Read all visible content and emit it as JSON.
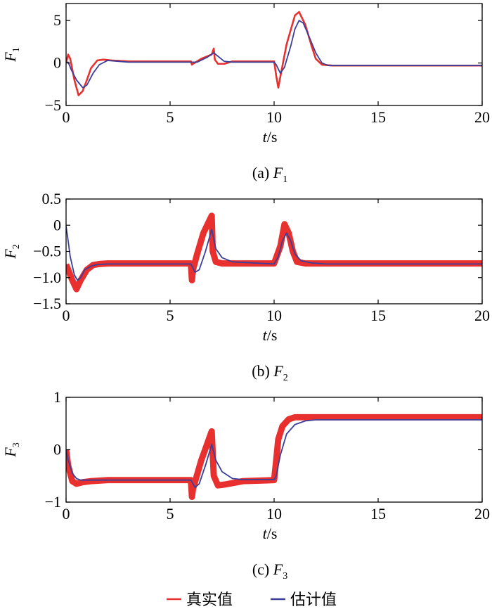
{
  "colors": {
    "real": "#e8312f",
    "estimate": "#3b3f9a",
    "axis": "#000000"
  },
  "legend": {
    "real_label": "真实值",
    "estimate_label": "估计值"
  },
  "chart_data": [
    {
      "type": "line",
      "caption": "(a) F",
      "caption_sub": "1",
      "xlabel": "t/s",
      "ylabel": "F",
      "ylabel_sub": "1",
      "xlim": [
        0,
        20
      ],
      "ylim": [
        -5,
        7
      ],
      "xticks": [
        0,
        5,
        10,
        15,
        20
      ],
      "yticks": [
        -5,
        0,
        5
      ],
      "ytick_labels": [
        "−5",
        "0",
        "5"
      ],
      "series": [
        {
          "name": "真实值",
          "color": "#e8312f",
          "band": 0.1,
          "x": [
            0,
            0.1,
            0.2,
            0.4,
            0.6,
            0.8,
            1.0,
            1.2,
            1.5,
            1.8,
            2.2,
            3,
            4,
            5,
            6,
            6.05,
            6.1,
            6.5,
            7.0,
            7.1,
            7.15,
            7.3,
            7.6,
            8,
            9,
            10,
            10.1,
            10.2,
            10.3,
            10.6,
            11.0,
            11.2,
            11.5,
            11.8,
            12.0,
            12.3,
            12.8,
            13.5,
            15,
            17,
            20
          ],
          "y": [
            0,
            1.0,
            0.5,
            -2.0,
            -3.8,
            -3.3,
            -2.0,
            -0.6,
            0.3,
            0.4,
            0.3,
            0.2,
            0.2,
            0.2,
            0.2,
            -0.2,
            -0.1,
            0.5,
            1.0,
            1.7,
            0.4,
            -0.1,
            -0.1,
            0.2,
            0.2,
            0.2,
            -1.5,
            -2.9,
            -1.6,
            2.2,
            5.6,
            6.0,
            4.5,
            2.0,
            0.5,
            -0.2,
            -0.3,
            -0.3,
            -0.3,
            -0.3,
            -0.3
          ]
        },
        {
          "name": "估计值",
          "color": "#3b3f9a",
          "x": [
            0,
            0.1,
            0.25,
            0.5,
            0.8,
            1.0,
            1.3,
            1.6,
            2.0,
            2.5,
            3,
            5,
            6,
            6.3,
            6.8,
            7.1,
            7.3,
            7.6,
            8,
            9,
            10,
            10.1,
            10.3,
            10.5,
            10.8,
            11.0,
            11.2,
            11.4,
            11.7,
            12.0,
            12.3,
            12.6,
            13,
            15,
            20
          ],
          "y": [
            0,
            0.1,
            -0.8,
            -2.0,
            -2.9,
            -2.6,
            -1.2,
            -0.2,
            0.3,
            0.2,
            0.1,
            0.1,
            0.1,
            0.1,
            0.7,
            1.2,
            0.8,
            0.2,
            0.1,
            0.1,
            0.1,
            -0.2,
            -1.2,
            -0.5,
            2.0,
            4.0,
            5.0,
            4.7,
            3.0,
            1.2,
            0.0,
            -0.3,
            -0.3,
            -0.3,
            -0.3
          ]
        }
      ]
    },
    {
      "type": "line",
      "caption": "(b) F",
      "caption_sub": "2",
      "xlabel": "t/s",
      "ylabel": "F",
      "ylabel_sub": "2",
      "xlim": [
        0,
        20
      ],
      "ylim": [
        -1.5,
        0.5
      ],
      "xticks": [
        0,
        5,
        10,
        15,
        20
      ],
      "yticks": [
        -1.5,
        -1.0,
        -0.5,
        0,
        0.5
      ],
      "ytick_labels": [
        "−1.5",
        "−1.0",
        "−0.5",
        "0",
        "0.5"
      ],
      "series": [
        {
          "name": "真实值",
          "color": "#e8312f",
          "band": 0.06,
          "x": [
            0,
            0.1,
            0.3,
            0.5,
            0.7,
            1.0,
            1.3,
            1.6,
            2.0,
            3,
            5,
            6,
            6.05,
            6.1,
            6.3,
            6.6,
            7.0,
            7.05,
            7.2,
            7.5,
            8,
            10,
            10.3,
            10.5,
            10.7,
            10.9,
            11.1,
            11.5,
            12,
            15,
            20
          ],
          "y": [
            -0.75,
            -0.85,
            -1.05,
            -1.22,
            -1.05,
            -0.85,
            -0.76,
            -0.74,
            -0.73,
            -0.73,
            -0.73,
            -0.73,
            -1.05,
            -0.85,
            -0.55,
            -0.15,
            0.18,
            -0.5,
            -0.7,
            -0.73,
            -0.73,
            -0.73,
            -0.4,
            0.02,
            -0.15,
            -0.5,
            -0.7,
            -0.73,
            -0.73,
            -0.73,
            -0.73
          ]
        },
        {
          "name": "估计值",
          "color": "#3b3f9a",
          "x": [
            0,
            0.1,
            0.2,
            0.4,
            0.55,
            0.7,
            0.9,
            1.2,
            1.5,
            2.0,
            3,
            5,
            6,
            6.2,
            6.4,
            6.7,
            7.0,
            7.2,
            7.5,
            8,
            10,
            10.2,
            10.4,
            10.6,
            10.8,
            11.0,
            11.3,
            11.8,
            12.5,
            15,
            20
          ],
          "y": [
            -0.02,
            -0.3,
            -0.6,
            -0.95,
            -1.05,
            -1.0,
            -0.85,
            -0.78,
            -0.75,
            -0.74,
            -0.74,
            -0.74,
            -0.74,
            -0.9,
            -0.85,
            -0.5,
            -0.08,
            -0.45,
            -0.62,
            -0.7,
            -0.74,
            -0.6,
            -0.3,
            -0.15,
            -0.3,
            -0.55,
            -0.68,
            -0.72,
            -0.74,
            -0.74,
            -0.74
          ]
        }
      ]
    },
    {
      "type": "line",
      "caption": "(c) F",
      "caption_sub": "3",
      "xlabel": "t/s",
      "ylabel": "F",
      "ylabel_sub": "3",
      "xlim": [
        0,
        20
      ],
      "ylim": [
        -1,
        1
      ],
      "xticks": [
        0,
        5,
        10,
        15,
        20
      ],
      "yticks": [
        -1,
        0,
        1
      ],
      "ytick_labels": [
        "−1",
        "0",
        "1"
      ],
      "series": [
        {
          "name": "真实值",
          "color": "#e8312f",
          "band": 0.06,
          "x": [
            0,
            0.1,
            0.3,
            0.5,
            0.8,
            1.2,
            2,
            4,
            6,
            6.05,
            6.1,
            6.5,
            7.0,
            7.1,
            7.3,
            7.7,
            8.5,
            10,
            10.1,
            10.2,
            10.4,
            10.7,
            11.0,
            11.5,
            12,
            15,
            20
          ],
          "y": [
            0,
            -0.3,
            -0.6,
            -0.65,
            -0.62,
            -0.6,
            -0.58,
            -0.58,
            -0.58,
            -0.9,
            -0.75,
            -0.2,
            0.35,
            -0.5,
            -0.68,
            -0.66,
            -0.6,
            -0.58,
            -0.2,
            0.2,
            0.45,
            0.58,
            0.62,
            0.62,
            0.62,
            0.62,
            0.62
          ]
        },
        {
          "name": "估计值",
          "color": "#3b3f9a",
          "x": [
            0,
            0.1,
            0.3,
            0.5,
            0.7,
            1.0,
            1.5,
            2,
            4,
            6,
            6.2,
            6.4,
            6.7,
            7.0,
            7.2,
            7.5,
            8,
            8.5,
            10,
            10.1,
            10.3,
            10.6,
            11.0,
            11.5,
            12,
            13,
            15,
            20
          ],
          "y": [
            0,
            -0.2,
            -0.45,
            -0.55,
            -0.58,
            -0.58,
            -0.58,
            -0.58,
            -0.58,
            -0.58,
            -0.72,
            -0.65,
            -0.3,
            0.1,
            -0.2,
            -0.42,
            -0.55,
            -0.57,
            -0.57,
            -0.5,
            -0.1,
            0.3,
            0.48,
            0.55,
            0.57,
            0.57,
            0.57,
            0.57
          ]
        }
      ]
    }
  ]
}
